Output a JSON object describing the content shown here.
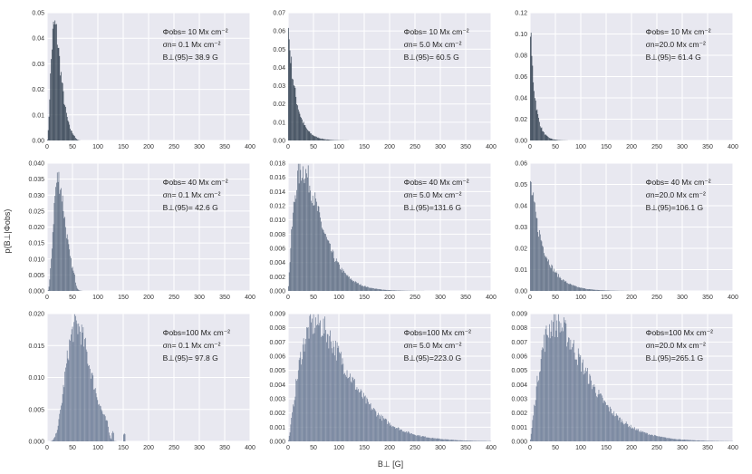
{
  "figure": {
    "ylabel": "p(B⊥|Φobs)",
    "xlabel": "B⊥ [G]"
  },
  "chart_data": [
    {
      "type": "bar",
      "panel": "r1c1",
      "phi_obs": 10,
      "sigma_n": 0.1,
      "b95": 38.9,
      "ylim": [
        0,
        0.05
      ],
      "xlim": [
        0,
        400
      ],
      "yticks": [
        0,
        0.01,
        0.02,
        0.03,
        0.04,
        0.05
      ],
      "yticklabels": [
        "0.00",
        "0.01",
        "0.02",
        "0.03",
        "0.04",
        "0.05"
      ],
      "xticks": [
        0,
        50,
        100,
        150,
        200,
        250,
        300,
        350,
        400
      ],
      "distribution": {
        "shape": "gamma",
        "peak_x": 15,
        "peak_y": 0.046,
        "k": 3.4,
        "cutoff": 55
      },
      "annotations": {
        "line1": "Φobs= 10 Mx cm⁻²",
        "line2": "σn= 0.1 Mx cm⁻²",
        "line3": "B⊥(95)= 38.9 G"
      }
    },
    {
      "type": "bar",
      "panel": "r1c2",
      "phi_obs": 10,
      "sigma_n": 5.0,
      "b95": 60.5,
      "ylim": [
        0,
        0.07
      ],
      "xlim": [
        0,
        400
      ],
      "yticks": [
        0,
        0.01,
        0.02,
        0.03,
        0.04,
        0.05,
        0.06,
        0.07
      ],
      "yticklabels": [
        "0.00",
        "0.01",
        "0.02",
        "0.03",
        "0.04",
        "0.05",
        "0.06",
        "0.07"
      ],
      "xticks": [
        0,
        50,
        100,
        150,
        200,
        250,
        300,
        350,
        400
      ],
      "distribution": {
        "shape": "decay",
        "peak_x": 1,
        "peak_y": 0.061,
        "scale": 16
      },
      "annotations": {
        "line1": "Φobs= 10 Mx cm⁻²",
        "line2": "σn= 5.0 Mx cm⁻²",
        "line3": "B⊥(95)= 60.5 G"
      }
    },
    {
      "type": "bar",
      "panel": "r1c3",
      "phi_obs": 10,
      "sigma_n": 20.0,
      "b95": 61.4,
      "ylim": [
        0,
        0.12
      ],
      "xlim": [
        0,
        400
      ],
      "yticks": [
        0,
        0.02,
        0.04,
        0.06,
        0.08,
        0.1,
        0.12
      ],
      "yticklabels": [
        "0.00",
        "0.02",
        "0.04",
        "0.06",
        "0.08",
        "0.10",
        "0.12"
      ],
      "xticks": [
        0,
        50,
        100,
        150,
        200,
        250,
        300,
        350,
        400
      ],
      "distribution": {
        "shape": "decay",
        "peak_x": 1,
        "peak_y": 0.105,
        "scale": 10
      },
      "annotations": {
        "line1": "Φobs= 10 Mx cm⁻²",
        "line2": "σn=20.0 Mx cm⁻²",
        "line3": "B⊥(95)= 61.4 G"
      }
    },
    {
      "type": "bar",
      "panel": "r2c1",
      "phi_obs": 40,
      "sigma_n": 0.1,
      "b95": 42.6,
      "ylim": [
        0,
        0.04
      ],
      "xlim": [
        0,
        400
      ],
      "yticks": [
        0,
        0.005,
        0.01,
        0.015,
        0.02,
        0.025,
        0.03,
        0.035,
        0.04
      ],
      "yticklabels": [
        "0.000",
        "0.005",
        "0.010",
        "0.015",
        "0.020",
        "0.025",
        "0.030",
        "0.035",
        "0.040"
      ],
      "xticks": [
        0,
        50,
        100,
        150,
        200,
        250,
        300,
        350,
        400
      ],
      "distribution": {
        "shape": "gamma",
        "peak_x": 22,
        "peak_y": 0.036,
        "k": 4.5,
        "cutoff": 55
      },
      "annotations": {
        "line1": "Φobs= 40 Mx cm⁻²",
        "line2": "σn= 0.1 Mx cm⁻²",
        "line3": "B⊥(95)= 42.6 G"
      }
    },
    {
      "type": "bar",
      "panel": "r2c2",
      "phi_obs": 40,
      "sigma_n": 5.0,
      "b95": 131.6,
      "ylim": [
        0,
        0.018
      ],
      "xlim": [
        0,
        400
      ],
      "yticks": [
        0,
        0.002,
        0.004,
        0.006,
        0.008,
        0.01,
        0.012,
        0.014,
        0.016,
        0.018
      ],
      "yticklabels": [
        "0.000",
        "0.002",
        "0.004",
        "0.006",
        "0.008",
        "0.010",
        "0.012",
        "0.014",
        "0.016",
        "0.018"
      ],
      "xticks": [
        0,
        50,
        100,
        150,
        200,
        250,
        300,
        350,
        400
      ],
      "distribution": {
        "shape": "gamma",
        "peak_x": 28,
        "peak_y": 0.0175,
        "k": 2.2
      },
      "annotations": {
        "line1": "Φobs= 40 Mx cm⁻²",
        "line2": "σn= 5.0 Mx cm⁻²",
        "line3": "B⊥(95)=131.6 G"
      }
    },
    {
      "type": "bar",
      "panel": "r2c3",
      "phi_obs": 40,
      "sigma_n": 20.0,
      "b95": 106.1,
      "ylim": [
        0,
        0.06
      ],
      "xlim": [
        0,
        400
      ],
      "yticks": [
        0,
        0.01,
        0.02,
        0.03,
        0.04,
        0.05,
        0.06
      ],
      "yticklabels": [
        "0.00",
        "0.01",
        "0.02",
        "0.03",
        "0.04",
        "0.05",
        "0.06"
      ],
      "xticks": [
        0,
        50,
        100,
        150,
        200,
        250,
        300,
        350,
        400
      ],
      "distribution": {
        "shape": "decay",
        "peak_x": 1,
        "peak_y": 0.052,
        "scale": 28
      },
      "annotations": {
        "line1": "Φobs= 40 Mx cm⁻²",
        "line2": "σn=20.0 Mx cm⁻²",
        "line3": "B⊥(95)=106.1 G"
      }
    },
    {
      "type": "bar",
      "panel": "r3c1",
      "phi_obs": 100,
      "sigma_n": 0.1,
      "b95": 97.8,
      "ylim": [
        0,
        0.02
      ],
      "xlim": [
        0,
        400
      ],
      "yticks": [
        0,
        0.005,
        0.01,
        0.015,
        0.02
      ],
      "yticklabels": [
        "0.000",
        "0.005",
        "0.010",
        "0.015",
        "0.020"
      ],
      "xticks": [
        0,
        50,
        100,
        150,
        200,
        250,
        300,
        350,
        400
      ],
      "distribution": {
        "shape": "gamma",
        "peak_x": 58,
        "peak_y": 0.0185,
        "k": 6.5,
        "cutoff": 120,
        "spikes": [
          [
            130,
            0.0015
          ],
          [
            152,
            0.0012
          ]
        ]
      },
      "annotations": {
        "line1": "Φobs=100 Mx cm⁻²",
        "line2": "σn= 0.1 Mx cm⁻²",
        "line3": "B⊥(95)= 97.8 G"
      }
    },
    {
      "type": "bar",
      "panel": "r3c2",
      "phi_obs": 100,
      "sigma_n": 5.0,
      "b95": 223.0,
      "ylim": [
        0,
        0.009
      ],
      "xlim": [
        0,
        400
      ],
      "yticks": [
        0,
        0.001,
        0.002,
        0.003,
        0.004,
        0.005,
        0.006,
        0.007,
        0.008,
        0.009
      ],
      "yticklabels": [
        "0.000",
        "0.001",
        "0.002",
        "0.003",
        "0.004",
        "0.005",
        "0.006",
        "0.007",
        "0.008",
        "0.009"
      ],
      "xticks": [
        0,
        50,
        100,
        150,
        200,
        250,
        300,
        350,
        400
      ],
      "distribution": {
        "shape": "gamma",
        "peak_x": 55,
        "peak_y": 0.0085,
        "k": 2.4
      },
      "annotations": {
        "line1": "Φobs=100 Mx cm⁻²",
        "line2": "σn= 5.0 Mx cm⁻²",
        "line3": "B⊥(95)=223.0 G"
      }
    },
    {
      "type": "bar",
      "panel": "r3c3",
      "phi_obs": 100,
      "sigma_n": 20.0,
      "b95": 265.1,
      "ylim": [
        0,
        0.009
      ],
      "xlim": [
        0,
        400
      ],
      "yticks": [
        0,
        0.001,
        0.002,
        0.003,
        0.004,
        0.005,
        0.006,
        0.007,
        0.008,
        0.009
      ],
      "yticklabels": [
        "0.000",
        "0.001",
        "0.002",
        "0.003",
        "0.004",
        "0.005",
        "0.006",
        "0.007",
        "0.008",
        "0.009"
      ],
      "xticks": [
        0,
        50,
        100,
        150,
        200,
        250,
        300,
        350,
        400
      ],
      "distribution": {
        "shape": "gamma",
        "peak_x": 50,
        "peak_y": 0.0085,
        "k": 2.3
      },
      "annotations": {
        "line1": "Φobs=100 Mx cm⁻²",
        "line2": "σn=20.0 Mx cm⁻²",
        "line3": "B⊥(95)=265.1 G"
      }
    }
  ]
}
